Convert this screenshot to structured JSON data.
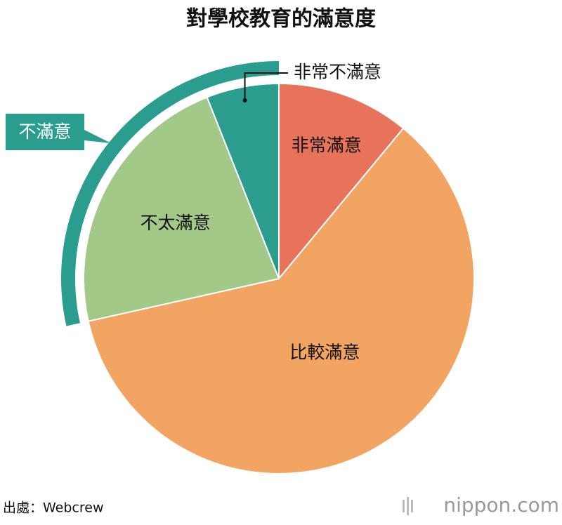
{
  "chart_data": {
    "type": "pie",
    "title": "對學校教育的滿意度",
    "categories": [
      "非常滿意",
      "比較滿意",
      "不太滿意",
      "非常不滿意"
    ],
    "values": [
      11,
      60.5,
      22.5,
      6
    ],
    "colors": [
      "#e6735a",
      "#f2a563",
      "#a3c988",
      "#2a9d8f"
    ],
    "group_label": "不滿意"
  },
  "footer": {
    "source": "出處：Webcrew",
    "logo": "nippon.com"
  }
}
